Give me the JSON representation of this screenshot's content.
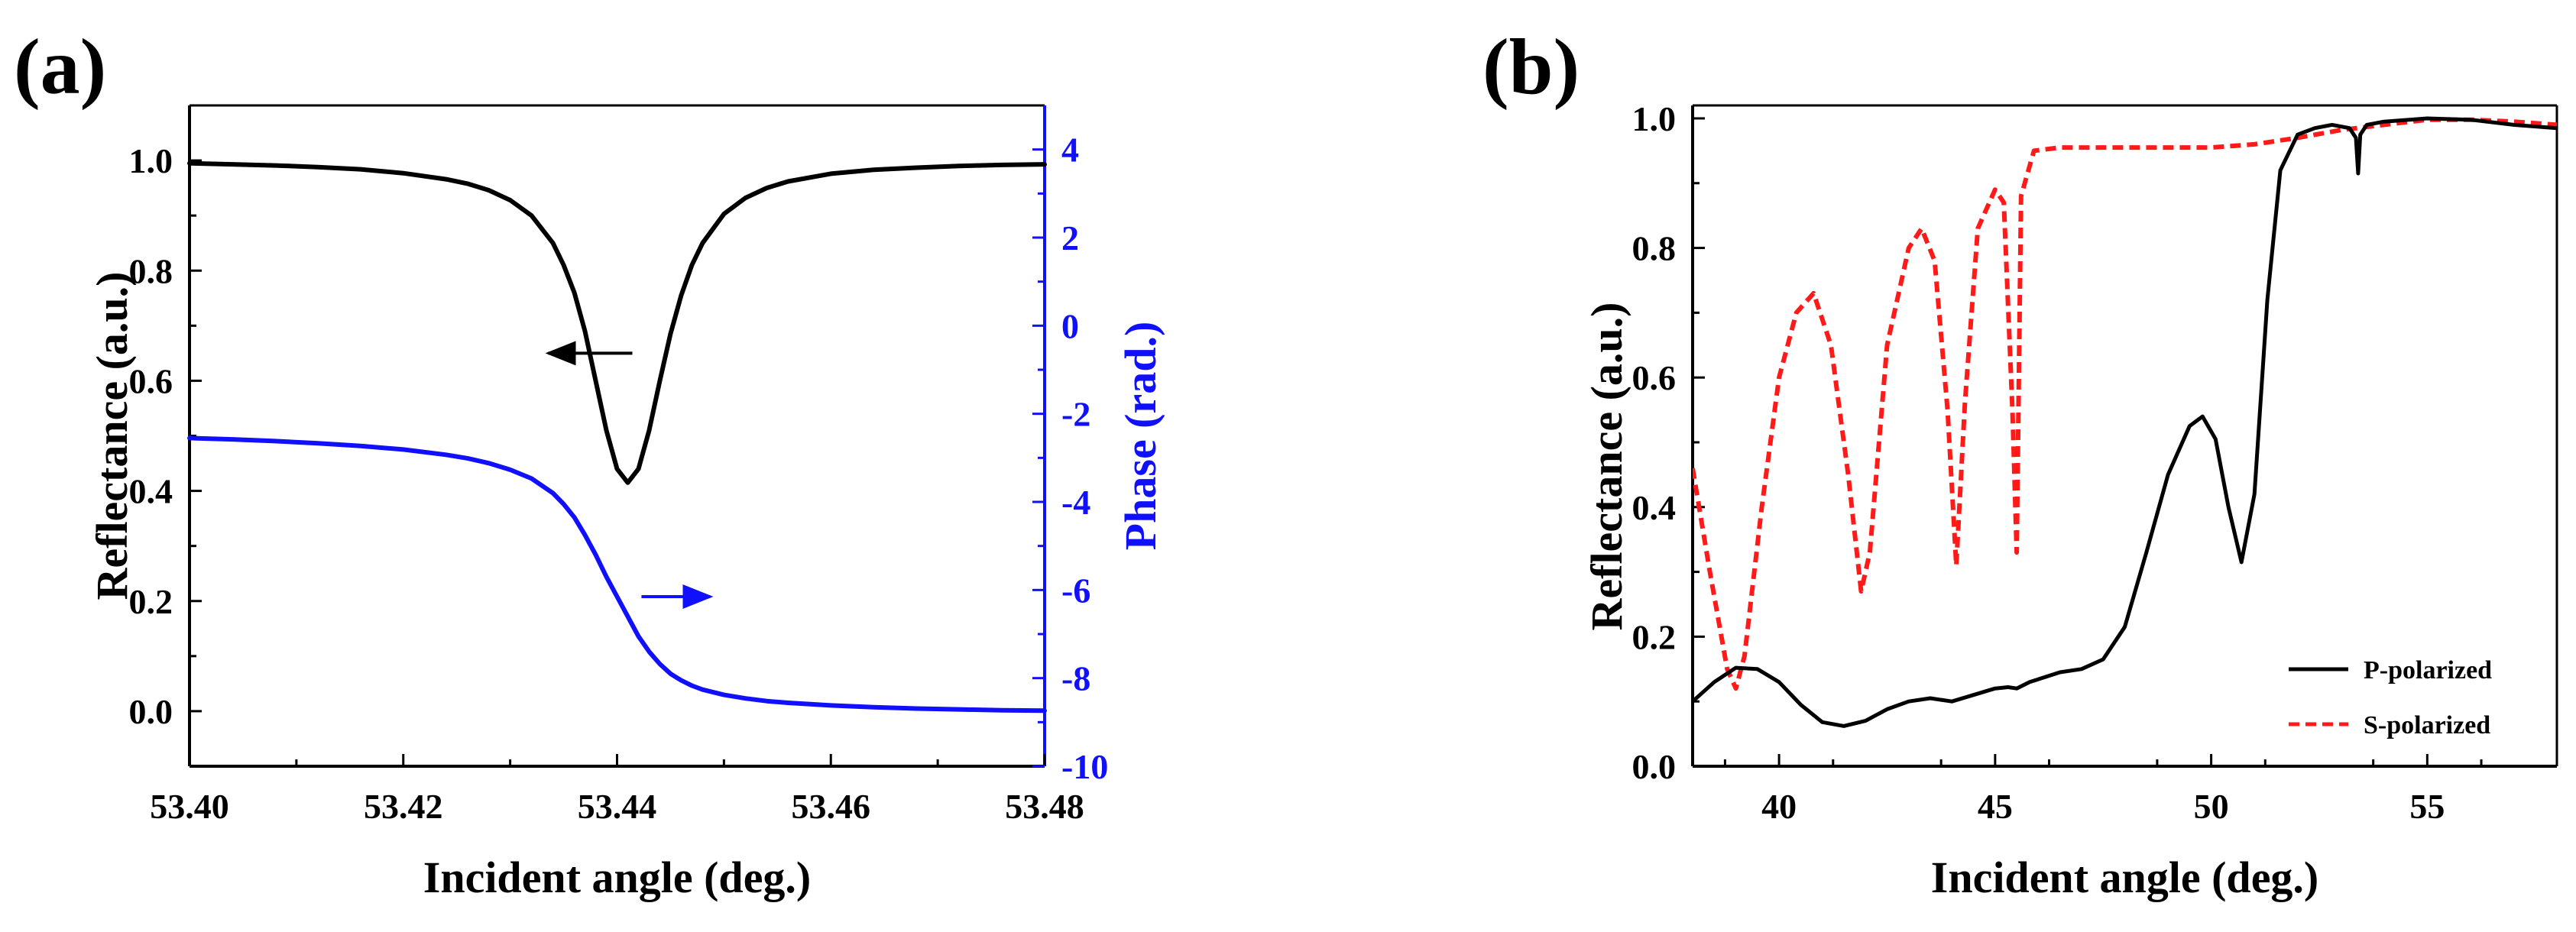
{
  "colors": {
    "reflectance": "#000000",
    "phase": "#1010ff",
    "p_polarized": "#000000",
    "s_polarized": "#ff1a1a",
    "axis": "#000000"
  },
  "chart_data": [
    {
      "panel": "(a)",
      "type": "line",
      "xlabel": "Incident angle (deg.)",
      "ylabel": "Reflectance (a.u.)",
      "y2label": "Phase (rad.)",
      "xlim": [
        53.4,
        53.48
      ],
      "ylim": [
        -0.1,
        1.1
      ],
      "y2lim": [
        -10,
        5
      ],
      "xticks": [
        "53.40",
        "53.42",
        "53.44",
        "53.46",
        "53.48"
      ],
      "yticks": [
        "0.0",
        "0.2",
        "0.4",
        "0.6",
        "0.8",
        "1.0"
      ],
      "y2ticks": [
        "-10",
        "-8",
        "-6",
        "-4",
        "-2",
        "0",
        "2",
        "4"
      ],
      "grid": false,
      "annotations": [
        {
          "type": "arrow",
          "direction": "left",
          "points_to": "Reflectance axis",
          "at": [
            53.4375,
            0.65
          ]
        },
        {
          "type": "arrow",
          "direction": "right",
          "points_to": "Phase axis",
          "at": [
            53.4455,
            -6.15
          ]
        }
      ],
      "series": [
        {
          "name": "Reflectance",
          "axis": "left",
          "x": [
            53.4,
            53.404,
            53.408,
            53.412,
            53.416,
            53.42,
            53.424,
            53.426,
            53.428,
            53.43,
            53.432,
            53.434,
            53.435,
            53.436,
            53.437,
            53.438,
            53.439,
            53.44,
            53.441,
            53.442,
            53.443,
            53.444,
            53.445,
            53.446,
            53.447,
            53.448,
            53.45,
            53.452,
            53.454,
            53.456,
            53.46,
            53.464,
            53.468,
            53.472,
            53.476,
            53.48
          ],
          "y": [
            0.995,
            0.993,
            0.991,
            0.988,
            0.984,
            0.977,
            0.966,
            0.958,
            0.946,
            0.928,
            0.9,
            0.85,
            0.81,
            0.76,
            0.69,
            0.6,
            0.51,
            0.44,
            0.415,
            0.44,
            0.51,
            0.6,
            0.685,
            0.755,
            0.81,
            0.85,
            0.903,
            0.932,
            0.95,
            0.962,
            0.976,
            0.983,
            0.987,
            0.99,
            0.992,
            0.993
          ]
        },
        {
          "name": "Phase",
          "axis": "right",
          "x": [
            53.4,
            53.404,
            53.408,
            53.412,
            53.416,
            53.42,
            53.424,
            53.426,
            53.428,
            53.43,
            53.432,
            53.434,
            53.435,
            53.436,
            53.437,
            53.438,
            53.439,
            53.44,
            53.441,
            53.442,
            53.443,
            53.444,
            53.445,
            53.446,
            53.447,
            53.448,
            53.45,
            53.452,
            53.454,
            53.456,
            53.46,
            53.464,
            53.468,
            53.472,
            53.476,
            53.48
          ],
          "y": [
            -2.55,
            -2.58,
            -2.62,
            -2.67,
            -2.73,
            -2.81,
            -2.93,
            -3.01,
            -3.12,
            -3.27,
            -3.47,
            -3.8,
            -4.05,
            -4.35,
            -4.75,
            -5.2,
            -5.7,
            -6.15,
            -6.6,
            -7.05,
            -7.4,
            -7.68,
            -7.9,
            -8.05,
            -8.17,
            -8.26,
            -8.38,
            -8.46,
            -8.52,
            -8.56,
            -8.62,
            -8.66,
            -8.69,
            -8.71,
            -8.73,
            -8.74
          ]
        }
      ]
    },
    {
      "panel": "(b)",
      "type": "line",
      "xlabel": "Incident angle (deg.)",
      "ylabel": "Reflectance (a.u.)",
      "xlim": [
        38,
        58
      ],
      "ylim": [
        0.0,
        1.02
      ],
      "xticks": [
        "40",
        "45",
        "50",
        "55"
      ],
      "yticks": [
        "0.0",
        "0.2",
        "0.4",
        "0.6",
        "0.8",
        "1.0"
      ],
      "grid": false,
      "legend": "bottom-right",
      "series": [
        {
          "name": "P-polarized",
          "style": "solid",
          "x": [
            38.0,
            38.5,
            39.0,
            39.5,
            40.0,
            40.5,
            41.0,
            41.5,
            42.0,
            42.5,
            43.0,
            43.5,
            44.0,
            44.5,
            45.0,
            45.3,
            45.5,
            45.8,
            46.5,
            47.0,
            47.5,
            48.0,
            48.5,
            49.0,
            49.5,
            49.8,
            50.1,
            50.4,
            50.7,
            51.0,
            51.3,
            51.6,
            52.0,
            52.4,
            52.8,
            53.2,
            53.35,
            53.4,
            53.45,
            53.6,
            54.0,
            55.0,
            56.0,
            57.0,
            58.0
          ],
          "y": [
            0.1,
            0.13,
            0.152,
            0.15,
            0.13,
            0.095,
            0.068,
            0.062,
            0.07,
            0.088,
            0.1,
            0.105,
            0.1,
            0.11,
            0.12,
            0.122,
            0.12,
            0.13,
            0.145,
            0.15,
            0.165,
            0.215,
            0.33,
            0.45,
            0.525,
            0.54,
            0.505,
            0.4,
            0.315,
            0.42,
            0.72,
            0.92,
            0.975,
            0.985,
            0.99,
            0.985,
            0.97,
            0.915,
            0.975,
            0.99,
            0.995,
            1.0,
            0.998,
            0.99,
            0.985
          ]
        },
        {
          "name": "S-polarized",
          "style": "dashed",
          "x": [
            38.0,
            38.4,
            38.8,
            39.0,
            39.2,
            39.6,
            40.0,
            40.4,
            40.8,
            41.2,
            41.6,
            41.9,
            42.1,
            42.5,
            43.0,
            43.3,
            43.6,
            43.9,
            44.1,
            44.3,
            44.6,
            45.0,
            45.2,
            45.4,
            45.5,
            45.6,
            45.9,
            46.5,
            48.0,
            50.0,
            51.0,
            52.0,
            53.0,
            54.0,
            55.0,
            56.0,
            57.0,
            58.0
          ],
          "y": [
            0.46,
            0.3,
            0.15,
            0.12,
            0.17,
            0.4,
            0.6,
            0.7,
            0.73,
            0.65,
            0.45,
            0.27,
            0.33,
            0.65,
            0.8,
            0.83,
            0.78,
            0.55,
            0.31,
            0.56,
            0.83,
            0.89,
            0.87,
            0.55,
            0.33,
            0.88,
            0.95,
            0.955,
            0.955,
            0.955,
            0.96,
            0.97,
            0.982,
            0.99,
            0.998,
            0.998,
            0.995,
            0.99
          ]
        }
      ]
    }
  ]
}
